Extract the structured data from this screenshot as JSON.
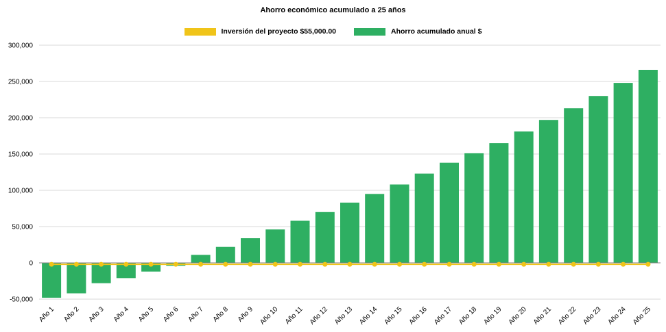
{
  "chart_data": {
    "type": "bar",
    "title": "Ahorro económico acumulado a 25 años",
    "categories": [
      "Año 1",
      "Año 2",
      "Año 3",
      "Año 4",
      "Año 5",
      "Año 6",
      "Año 7",
      "Año 8",
      "Año 9",
      "Año 10",
      "Año 11",
      "Año 12",
      "Año 13",
      "Año 14",
      "Año 15",
      "Año 16",
      "Año 17",
      "Año 18",
      "Año 19",
      "Año 20",
      "Año 21",
      "Año 22",
      "Año 23",
      "Año 24",
      "Año 25"
    ],
    "bar_series": {
      "name": "Ahorro acumulado anual $",
      "color": "#2EAF62",
      "values": [
        -48000,
        -42000,
        -28000,
        -21000,
        -12000,
        -4000,
        11000,
        22000,
        34000,
        46000,
        58000,
        70000,
        83000,
        95000,
        108000,
        123000,
        138000,
        151000,
        165000,
        181000,
        197000,
        213000,
        230000,
        248000,
        266000
      ]
    },
    "line_series": {
      "name": "Inversión del proyecto $55,000.00",
      "color": "#F0C419",
      "value": -2000
    },
    "ylim": [
      -50000,
      300000
    ],
    "grid": true,
    "legend_position": "top",
    "yticks": [
      {
        "value": -50000,
        "label": "-50,000"
      },
      {
        "value": 0,
        "label": "0"
      },
      {
        "value": 50000,
        "label": "50,000"
      },
      {
        "value": 100000,
        "label": "100,000"
      },
      {
        "value": 150000,
        "label": "150,000"
      },
      {
        "value": 200000,
        "label": "200,000"
      },
      {
        "value": 250000,
        "label": "250,000"
      },
      {
        "value": 300000,
        "label": "300,000"
      }
    ]
  },
  "colors": {
    "grid": "#D9D9D9",
    "zero_axis": "#808080",
    "text": "#000000",
    "background": "#FFFFFF"
  }
}
